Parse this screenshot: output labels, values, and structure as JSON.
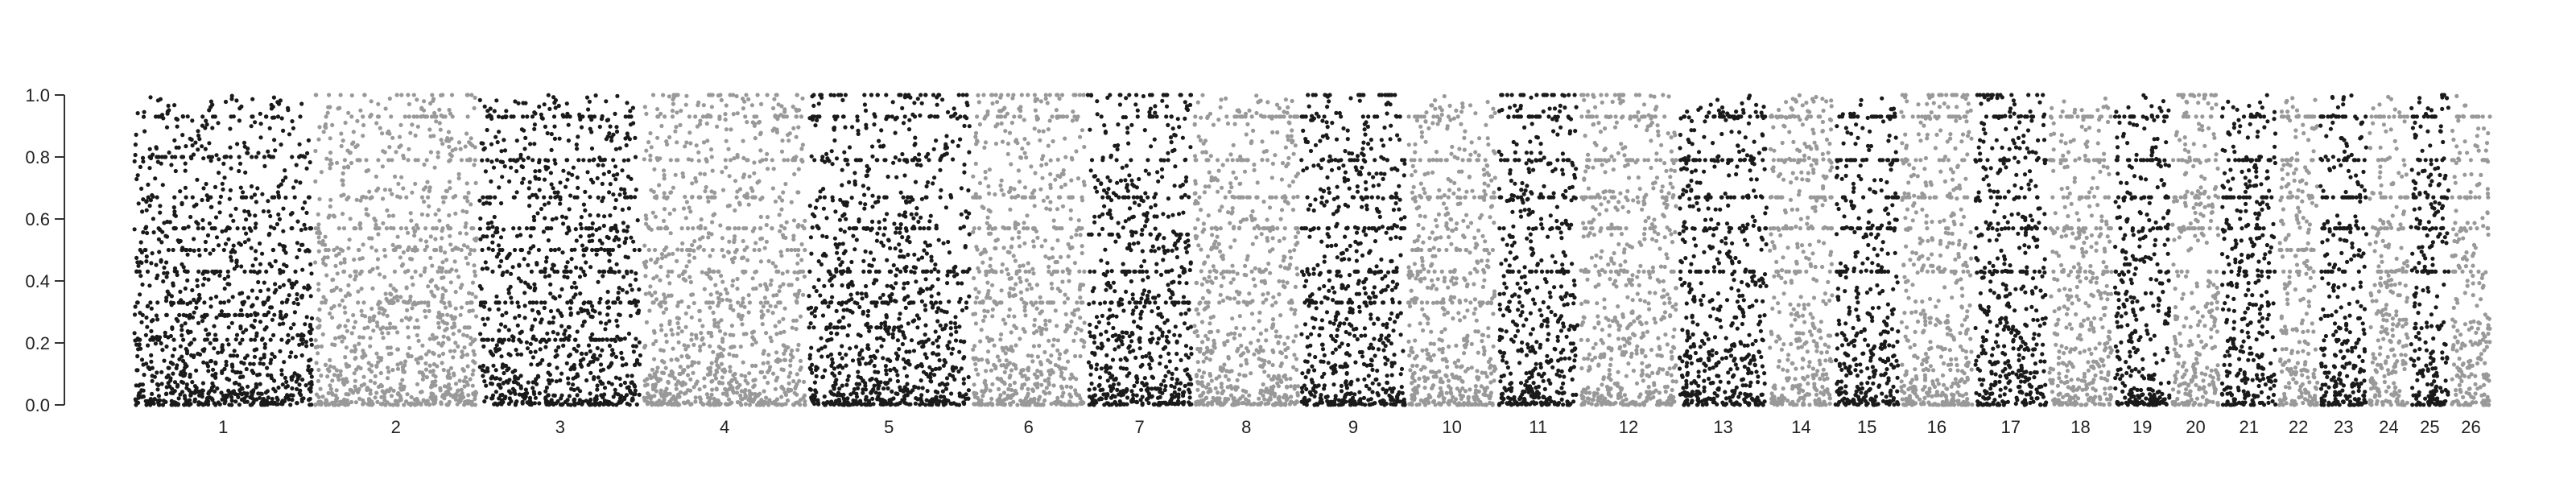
{
  "chart_data": {
    "type": "scatter",
    "title": "",
    "xlabel": "",
    "ylabel": "",
    "ylim": [
      0.0,
      1.0
    ],
    "yticks": [
      0.0,
      0.2,
      0.4,
      0.6,
      0.8,
      1.0
    ],
    "ytick_labels": [
      "0.0",
      "0.2",
      "0.4",
      "0.6",
      "0.8",
      "1.0"
    ],
    "grid": false,
    "legend": "none",
    "colors": {
      "odd": "#1a1a1a",
      "even": "#999999",
      "axis": "#333333"
    },
    "categories": [
      "1",
      "2",
      "3",
      "4",
      "5",
      "6",
      "7",
      "8",
      "9",
      "10",
      "11",
      "12",
      "13",
      "14",
      "15",
      "16",
      "17",
      "18",
      "19",
      "20",
      "21",
      "22",
      "23",
      "24",
      "25",
      "26"
    ],
    "series": [
      {
        "chromosome": "1",
        "relative_width": 110,
        "levels": [
          0.93,
          0.8,
          0.67,
          0.57,
          0.5,
          0.43,
          0.33,
          0.29,
          0.21
        ]
      },
      {
        "chromosome": "2",
        "relative_width": 100,
        "levels": [
          1.0,
          0.93,
          0.79,
          0.67,
          0.57,
          0.5,
          0.43,
          0.33,
          0.25
        ]
      },
      {
        "chromosome": "3",
        "relative_width": 100,
        "levels": [
          0.93,
          0.79,
          0.67,
          0.57,
          0.5,
          0.43,
          0.33,
          0.21
        ]
      },
      {
        "chromosome": "4",
        "relative_width": 100,
        "levels": [
          1.0,
          0.93,
          0.79,
          0.67,
          0.57,
          0.5,
          0.43,
          0.33
        ]
      },
      {
        "chromosome": "5",
        "relative_width": 100,
        "levels": [
          1.0,
          0.93,
          0.79,
          0.67,
          0.57,
          0.43,
          0.33,
          0.25
        ]
      },
      {
        "chromosome": "6",
        "relative_width": 70,
        "levels": [
          1.0,
          0.93,
          0.67,
          0.57,
          0.43,
          0.33
        ]
      },
      {
        "chromosome": "7",
        "relative_width": 65,
        "levels": [
          1.0,
          0.93,
          0.79,
          0.67,
          0.55,
          0.43,
          0.33
        ]
      },
      {
        "chromosome": "8",
        "relative_width": 65,
        "levels": [
          0.93,
          0.79,
          0.67,
          0.57,
          0.43,
          0.33
        ]
      },
      {
        "chromosome": "9",
        "relative_width": 65,
        "levels": [
          1.0,
          0.93,
          0.79,
          0.67,
          0.57,
          0.43,
          0.33
        ]
      },
      {
        "chromosome": "10",
        "relative_width": 55,
        "levels": [
          0.93,
          0.79,
          0.67,
          0.5,
          0.43,
          0.33
        ]
      },
      {
        "chromosome": "11",
        "relative_width": 50,
        "levels": [
          1.0,
          0.93,
          0.79,
          0.67,
          0.57,
          0.43
        ]
      },
      {
        "chromosome": "12",
        "relative_width": 60,
        "levels": [
          1.0,
          0.93,
          0.79,
          0.67,
          0.57,
          0.43
        ]
      },
      {
        "chromosome": "13",
        "relative_width": 55,
        "levels": [
          0.93,
          0.79,
          0.67,
          0.57,
          0.43
        ]
      },
      {
        "chromosome": "14",
        "relative_width": 40,
        "levels": [
          0.93,
          0.79,
          0.67,
          0.57,
          0.43
        ]
      },
      {
        "chromosome": "15",
        "relative_width": 40,
        "levels": [
          0.93,
          0.79,
          0.67,
          0.57,
          0.43
        ]
      },
      {
        "chromosome": "16",
        "relative_width": 45,
        "levels": [
          1.0,
          0.93,
          0.79,
          0.67,
          0.57,
          0.43
        ]
      },
      {
        "chromosome": "17",
        "relative_width": 45,
        "levels": [
          1.0,
          0.93,
          0.79,
          0.67,
          0.57,
          0.43
        ]
      },
      {
        "chromosome": "18",
        "relative_width": 40,
        "levels": [
          0.93,
          0.79,
          0.67,
          0.57,
          0.43
        ]
      },
      {
        "chromosome": "19",
        "relative_width": 35,
        "levels": [
          0.93,
          0.79,
          0.67,
          0.57,
          0.43
        ]
      },
      {
        "chromosome": "20",
        "relative_width": 30,
        "levels": [
          1.0,
          0.93,
          0.79,
          0.67,
          0.57,
          0.43
        ]
      },
      {
        "chromosome": "21",
        "relative_width": 35,
        "levels": [
          0.93,
          0.79,
          0.67,
          0.57,
          0.43
        ]
      },
      {
        "chromosome": "22",
        "relative_width": 25,
        "levels": [
          0.93,
          0.79,
          0.67,
          0.5,
          0.43
        ]
      },
      {
        "chromosome": "23",
        "relative_width": 30,
        "levels": [
          0.93,
          0.79,
          0.67,
          0.57,
          0.43
        ]
      },
      {
        "chromosome": "24",
        "relative_width": 25,
        "levels": [
          0.93,
          0.79,
          0.67,
          0.57,
          0.43
        ]
      },
      {
        "chromosome": "25",
        "relative_width": 25,
        "levels": [
          1.0,
          0.93,
          0.79,
          0.67,
          0.57,
          0.43
        ]
      },
      {
        "chromosome": "26",
        "relative_width": 25,
        "levels": [
          0.93,
          0.79,
          0.67,
          0.57,
          0.43
        ]
      }
    ]
  }
}
